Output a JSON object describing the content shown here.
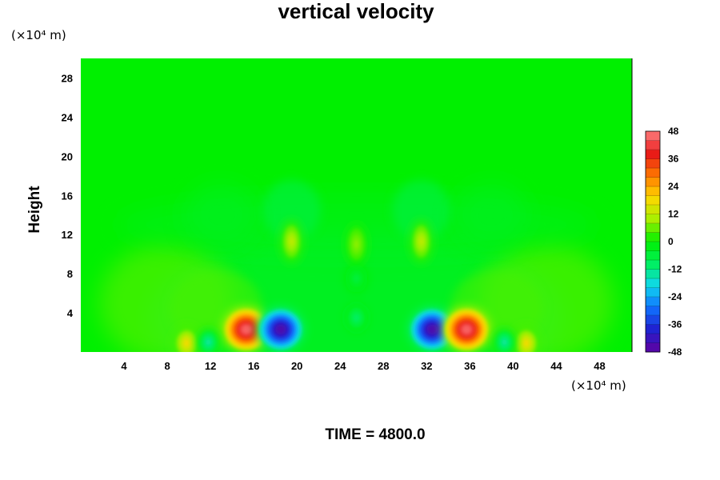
{
  "chart_data": {
    "type": "heatmap",
    "title": "vertical velocity",
    "ylabel": "Height",
    "xunit_label": "(×10⁴ m)",
    "yunit_label": "(×10⁴ m)",
    "footer": "TIME = 4800.0",
    "xlim": [
      0,
      51
    ],
    "ylim": [
      0,
      30
    ],
    "x_ticks": [
      4,
      8,
      12,
      16,
      20,
      24,
      28,
      32,
      36,
      40,
      44,
      48
    ],
    "y_ticks": [
      4,
      8,
      12,
      16,
      20,
      24,
      28
    ],
    "colorbar": {
      "min": -48,
      "max": 48,
      "ticks": [
        48,
        36,
        24,
        12,
        0,
        -12,
        -24,
        -36,
        -48
      ],
      "colors": [
        "#6000a0",
        "#2020d0",
        "#1070ff",
        "#10d8f0",
        "#00f060",
        "#00f000",
        "#a8f000",
        "#ffd800",
        "#ff7800",
        "#e81818",
        "#ff8080"
      ]
    },
    "features": [
      {
        "x": 15.3,
        "y": 2.3,
        "value": 45,
        "kind": "updraft"
      },
      {
        "x": 18.5,
        "y": 2.3,
        "value": -45,
        "kind": "downdraft"
      },
      {
        "x": 32.5,
        "y": 2.3,
        "value": -45,
        "kind": "downdraft"
      },
      {
        "x": 35.7,
        "y": 2.3,
        "value": 45,
        "kind": "updraft"
      },
      {
        "x": 9.8,
        "y": 0.9,
        "value": 18,
        "kind": "updraft"
      },
      {
        "x": 41.2,
        "y": 0.9,
        "value": 18,
        "kind": "updraft"
      },
      {
        "x": 11.8,
        "y": 1.0,
        "value": -14,
        "kind": "downdraft"
      },
      {
        "x": 39.2,
        "y": 1.0,
        "value": -14,
        "kind": "downdraft"
      },
      {
        "x": 25.5,
        "y": 3.5,
        "value": -10,
        "kind": "downdraft"
      },
      {
        "x": 19.5,
        "y": 11.3,
        "value": 12,
        "kind": "updraft"
      },
      {
        "x": 31.5,
        "y": 11.3,
        "value": 12,
        "kind": "updraft"
      },
      {
        "x": 25.5,
        "y": 11.0,
        "value": 8,
        "kind": "updraft"
      },
      {
        "x": 25.5,
        "y": 7.5,
        "value": -6,
        "kind": "downdraft"
      }
    ]
  }
}
